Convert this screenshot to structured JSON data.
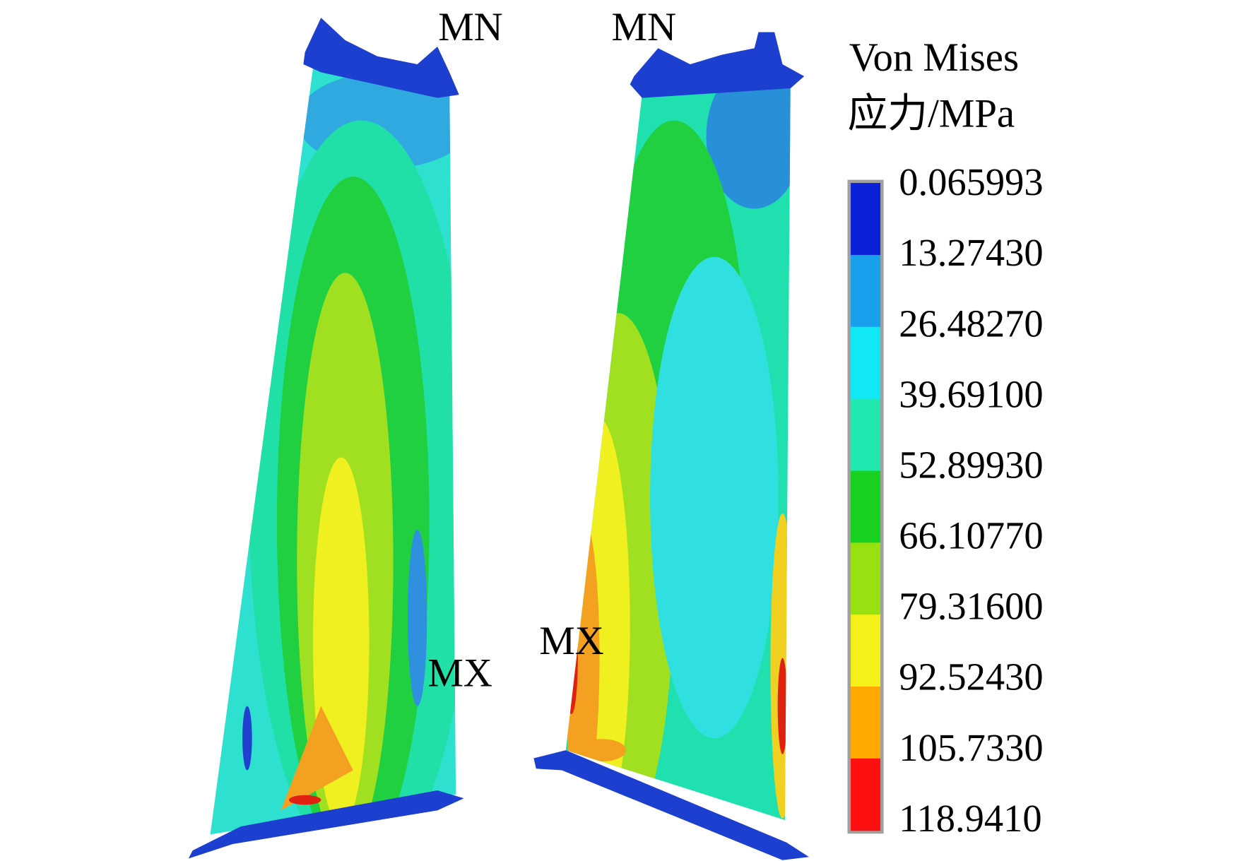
{
  "labels": {
    "left_top": "MN",
    "right_top": "MN",
    "left_max": "MX",
    "right_max": "MX"
  },
  "legend": {
    "title_line1": "Von Mises",
    "title_line2": "应力/MPa",
    "ticks": [
      "0.065993",
      "13.27430",
      "26.48270",
      "39.69100",
      "52.89930",
      "66.10770",
      "79.31600",
      "92.52430",
      "105.7330",
      "118.9410"
    ]
  }
}
